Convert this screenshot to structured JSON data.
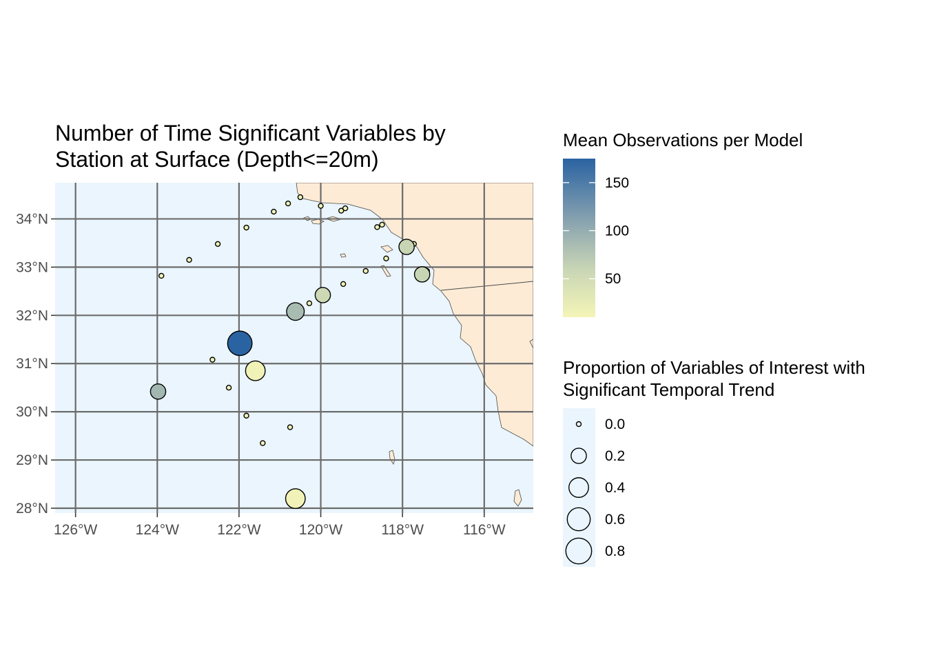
{
  "title": {
    "line1": "Number of Time Significant Variables by",
    "line2": "Station at Surface (Depth<=20m)"
  },
  "colors": {
    "ocean": "#eaf5fd",
    "land": "#fdebd6",
    "grid": "#6b6b6b",
    "low_value": "#f4f5b7",
    "high_value": "#2a63a2"
  },
  "chart_data": {
    "type": "scatter",
    "map_region": "Southern California Bight",
    "xlim": [
      -126.5,
      -114.8
    ],
    "ylim": [
      27.9,
      34.75
    ],
    "x_ticks": [
      -126,
      -124,
      -122,
      -120,
      -118,
      -116
    ],
    "x_tick_labels": [
      "126°W",
      "124°W",
      "122°W",
      "120°W",
      "118°W",
      "116°W"
    ],
    "y_ticks": [
      28,
      29,
      30,
      31,
      32,
      33,
      34
    ],
    "y_tick_labels": [
      "28°N",
      "29°N",
      "30°N",
      "31°N",
      "32°N",
      "33°N",
      "34°N"
    ],
    "grid": true,
    "legends": {
      "color": {
        "title": "Mean Observations per Model",
        "range": [
          10,
          175
        ],
        "breaks": [
          50,
          100,
          150
        ],
        "labels": [
          "50",
          "100",
          "150"
        ]
      },
      "size": {
        "title_line1": "Proportion of Variables of Interest with",
        "title_line2": "Significant Temporal Trend",
        "breaks": [
          0.0,
          0.2,
          0.4,
          0.6,
          0.8
        ],
        "labels": [
          "0.0",
          "0.2",
          "0.4",
          "0.6",
          "0.8"
        ]
      }
    },
    "stations": [
      {
        "lon": -120.5,
        "lat": 34.45,
        "prop": 0.0,
        "obs": 15
      },
      {
        "lon": -120.8,
        "lat": 34.32,
        "prop": 0.0,
        "obs": 15
      },
      {
        "lon": -121.15,
        "lat": 34.15,
        "prop": 0.0,
        "obs": 15
      },
      {
        "lon": -120.0,
        "lat": 34.27,
        "prop": 0.0,
        "obs": 15
      },
      {
        "lon": -119.5,
        "lat": 34.17,
        "prop": 0.0,
        "obs": 15
      },
      {
        "lon": -119.4,
        "lat": 34.22,
        "prop": 0.0,
        "obs": 15
      },
      {
        "lon": -121.82,
        "lat": 33.82,
        "prop": 0.0,
        "obs": 15
      },
      {
        "lon": -118.62,
        "lat": 33.83,
        "prop": 0.0,
        "obs": 15
      },
      {
        "lon": -118.5,
        "lat": 33.88,
        "prop": 0.0,
        "obs": 15
      },
      {
        "lon": -122.52,
        "lat": 33.48,
        "prop": 0.0,
        "obs": 15
      },
      {
        "lon": -117.72,
        "lat": 33.48,
        "prop": 0.0,
        "obs": 15
      },
      {
        "lon": -117.9,
        "lat": 33.42,
        "prop": 0.2,
        "obs": 60
      },
      {
        "lon": -123.22,
        "lat": 33.15,
        "prop": 0.0,
        "obs": 15
      },
      {
        "lon": -118.4,
        "lat": 33.18,
        "prop": 0.0,
        "obs": 15
      },
      {
        "lon": -118.9,
        "lat": 32.92,
        "prop": 0.0,
        "obs": 15
      },
      {
        "lon": -117.4,
        "lat": 32.92,
        "prop": 0.0,
        "obs": 15
      },
      {
        "lon": -117.52,
        "lat": 32.85,
        "prop": 0.2,
        "obs": 60
      },
      {
        "lon": -123.9,
        "lat": 32.82,
        "prop": 0.0,
        "obs": 15
      },
      {
        "lon": -119.45,
        "lat": 32.65,
        "prop": 0.0,
        "obs": 15
      },
      {
        "lon": -119.95,
        "lat": 32.42,
        "prop": 0.2,
        "obs": 55
      },
      {
        "lon": -120.28,
        "lat": 32.25,
        "prop": 0.0,
        "obs": 15
      },
      {
        "lon": -120.62,
        "lat": 32.08,
        "prop": 0.3,
        "obs": 85
      },
      {
        "lon": -121.98,
        "lat": 31.42,
        "prop": 0.7,
        "obs": 175
      },
      {
        "lon": -122.65,
        "lat": 31.08,
        "prop": 0.0,
        "obs": 15
      },
      {
        "lon": -121.6,
        "lat": 30.85,
        "prop": 0.4,
        "obs": 15
      },
      {
        "lon": -122.25,
        "lat": 30.5,
        "prop": 0.0,
        "obs": 15
      },
      {
        "lon": -123.98,
        "lat": 30.42,
        "prop": 0.2,
        "obs": 90
      },
      {
        "lon": -121.82,
        "lat": 29.92,
        "prop": 0.0,
        "obs": 15
      },
      {
        "lon": -120.75,
        "lat": 29.68,
        "prop": 0.0,
        "obs": 15
      },
      {
        "lon": -121.42,
        "lat": 29.35,
        "prop": 0.0,
        "obs": 15
      },
      {
        "lon": -120.62,
        "lat": 28.2,
        "prop": 0.4,
        "obs": 15
      }
    ]
  }
}
